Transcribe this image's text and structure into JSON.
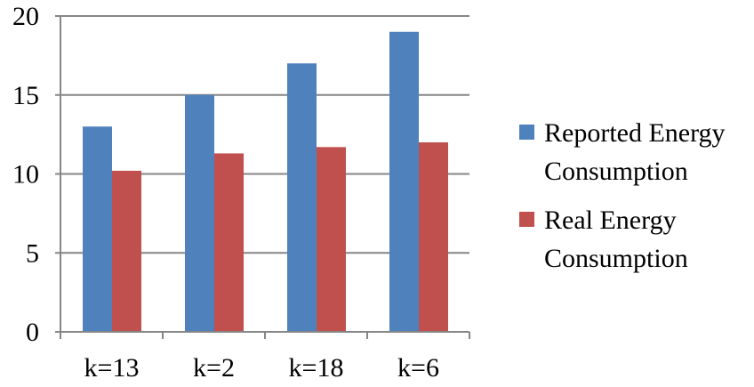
{
  "chart_data": {
    "type": "bar",
    "categories": [
      "k=13",
      "k=2",
      "k=18",
      "k=6"
    ],
    "series": [
      {
        "name": "Reported Energy Consumption",
        "legend_lines": [
          "Reported Energy",
          "Consumption"
        ],
        "color": "#4F81BD",
        "values": [
          13,
          15,
          17,
          19
        ]
      },
      {
        "name": "Real Energy Consumption",
        "legend_lines": [
          "Real Energy",
          "Consumption"
        ],
        "color": "#C0504D",
        "values": [
          10.2,
          11.3,
          11.7,
          12
        ]
      }
    ],
    "ylim": [
      0,
      20
    ],
    "yticks": [
      "0",
      "5",
      "10",
      "15",
      "20"
    ],
    "grid": true,
    "legend_position": "right",
    "gridline_color": "#868686",
    "axis_color": "#868686"
  }
}
